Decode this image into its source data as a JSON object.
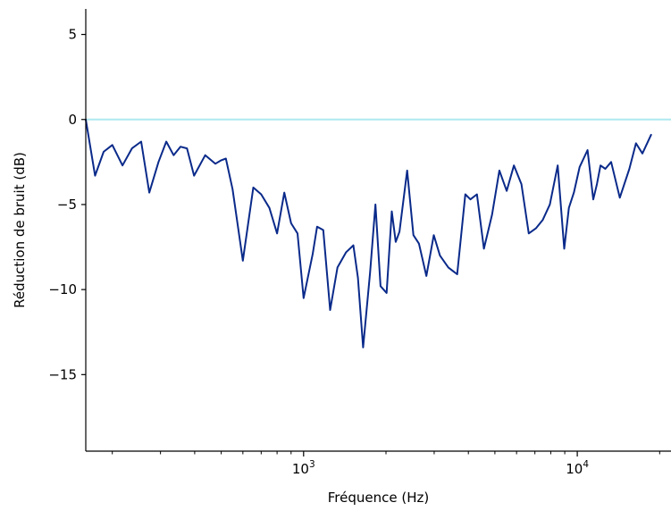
{
  "chart_data": {
    "type": "line",
    "title": "",
    "xlabel": "Fréquence (Hz)",
    "ylabel": "Réduction de bruit (dB)",
    "xscale": "log",
    "xlim": [
      160,
      22000
    ],
    "ylim": [
      -19.5,
      6.5
    ],
    "grid": false,
    "legend": "none",
    "colors": {
      "series": "#0a2a8a",
      "reference": "#aee8f0"
    },
    "yticks": [
      {
        "value": 5,
        "label": "5"
      },
      {
        "value": 0,
        "label": "0"
      },
      {
        "value": -5,
        "label": "−5"
      },
      {
        "value": -10,
        "label": "−10"
      },
      {
        "value": -15,
        "label": "−15"
      }
    ],
    "xticks_major": [
      {
        "value": 1000,
        "base": "10",
        "exp": "3"
      },
      {
        "value": 10000,
        "base": "10",
        "exp": "4"
      }
    ],
    "xticks_minor": [
      200,
      300,
      400,
      500,
      600,
      700,
      800,
      900,
      2000,
      3000,
      4000,
      5000,
      6000,
      7000,
      8000,
      9000,
      20000
    ],
    "reference_line": {
      "y": 0
    },
    "series": [
      {
        "x": [
          160,
          173,
          186,
          200,
          218,
          236,
          255,
          273,
          295,
          315,
          335,
          355,
          375,
          398,
          437,
          476,
          500,
          520,
          550,
          600,
          655,
          700,
          750,
          800,
          850,
          900,
          950,
          1000,
          1080,
          1120,
          1180,
          1250,
          1330,
          1430,
          1520,
          1580,
          1650,
          1750,
          1830,
          1910,
          2010,
          2100,
          2170,
          2240,
          2390,
          2520,
          2640,
          2810,
          2990,
          3150,
          3380,
          3640,
          3900,
          4070,
          4300,
          4560,
          4880,
          5190,
          5520,
          5870,
          6250,
          6650,
          7060,
          7480,
          7940,
          8480,
          8960,
          9320,
          9720,
          10200,
          10900,
          11440,
          11800,
          12160,
          12660,
          13300,
          14300,
          15500,
          16380,
          17300,
          18600
        ],
        "y": [
          0,
          -3.3,
          -1.9,
          -1.5,
          -2.7,
          -1.7,
          -1.3,
          -4.3,
          -2.5,
          -1.3,
          -2.1,
          -1.6,
          -1.7,
          -3.3,
          -2.1,
          -2.6,
          -2.4,
          -2.3,
          -4.1,
          -8.3,
          -4.0,
          -4.4,
          -5.2,
          -6.7,
          -4.3,
          -6.1,
          -6.7,
          -10.5,
          -7.9,
          -6.3,
          -6.5,
          -11.2,
          -8.7,
          -7.8,
          -7.4,
          -9.3,
          -13.4,
          -9.0,
          -5.0,
          -9.8,
          -10.2,
          -5.4,
          -7.2,
          -6.6,
          -3.0,
          -6.8,
          -7.3,
          -9.2,
          -6.8,
          -8.0,
          -8.7,
          -9.1,
          -4.4,
          -4.7,
          -4.4,
          -7.6,
          -5.6,
          -3.0,
          -4.2,
          -2.7,
          -3.8,
          -6.7,
          -6.4,
          -5.9,
          -5.0,
          -2.7,
          -7.6,
          -5.2,
          -4.3,
          -2.8,
          -1.8,
          -4.7,
          -3.8,
          -2.7,
          -2.9,
          -2.5,
          -4.6,
          -2.9,
          -1.4,
          -2.0,
          -0.9
        ]
      }
    ]
  }
}
